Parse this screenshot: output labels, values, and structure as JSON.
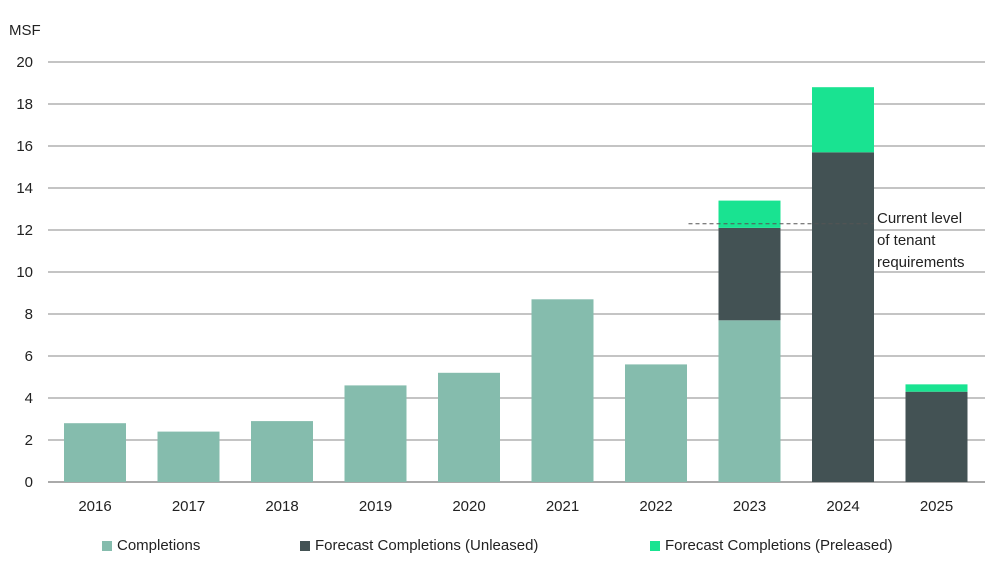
{
  "chart_data": {
    "type": "bar",
    "stacked": true,
    "categories": [
      "2016",
      "2017",
      "2018",
      "2019",
      "2020",
      "2021",
      "2022",
      "2023",
      "2024",
      "2025"
    ],
    "series": [
      {
        "name": "Completions",
        "color": "#85bcad",
        "values": [
          2.8,
          2.4,
          2.9,
          4.6,
          5.2,
          8.7,
          5.6,
          7.7,
          0,
          0
        ]
      },
      {
        "name": "Forecast Completions (Unleased)",
        "color": "#435254",
        "values": [
          0,
          0,
          0,
          0,
          0,
          0,
          0,
          4.4,
          15.7,
          4.3
        ]
      },
      {
        "name": "Forecast Completions (Preleased)",
        "color": "#19e391",
        "values": [
          0,
          0,
          0,
          0,
          0,
          0,
          0,
          1.3,
          3.1,
          0.35
        ]
      }
    ],
    "ylabel": "MSF",
    "ylim": [
      0,
      20
    ],
    "yticks": [
      "0",
      "2",
      "4",
      "6",
      "8",
      "10",
      "12",
      "14",
      "16",
      "18",
      "20"
    ],
    "grid": true,
    "legend_position": "bottom",
    "reference_line": {
      "value": 12.3,
      "from_category": "2023",
      "to_category": "2024",
      "style": "dashed"
    },
    "annotation": [
      "Current level",
      "of tenant",
      "requirements"
    ]
  }
}
